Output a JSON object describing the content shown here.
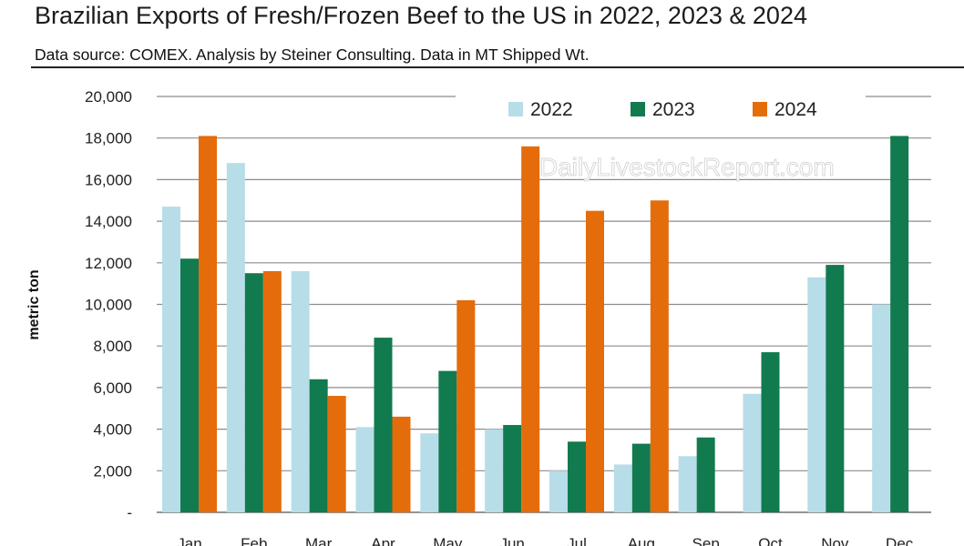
{
  "header": {
    "title": "Brazilian Exports of Fresh/Frozen Beef to the US in 2022, 2023 & 2024",
    "subtitle": "Data source: COMEX.  Analysis by Steiner Consulting.  Data in MT Shipped Wt.",
    "watermark": "DailyLivestockReport.com"
  },
  "chart_data": {
    "type": "bar",
    "title": "Brazilian Exports of Fresh/Frozen Beef to the US in 2022, 2023 & 2024",
    "xlabel": "",
    "ylabel": "metric ton",
    "ylim": [
      0,
      20000
    ],
    "yticks": [
      {
        "value": 0,
        "label": "-"
      },
      {
        "value": 2000,
        "label": "2,000"
      },
      {
        "value": 4000,
        "label": "4,000"
      },
      {
        "value": 6000,
        "label": "6,000"
      },
      {
        "value": 8000,
        "label": "8,000"
      },
      {
        "value": 10000,
        "label": "10,000"
      },
      {
        "value": 12000,
        "label": "12,000"
      },
      {
        "value": 14000,
        "label": "14,000"
      },
      {
        "value": 16000,
        "label": "16,000"
      },
      {
        "value": 18000,
        "label": "18,000"
      },
      {
        "value": 20000,
        "label": "20,000"
      }
    ],
    "grid": true,
    "legend_position": "top-right",
    "categories": [
      "Jan",
      "Feb",
      "Mar",
      "Apr",
      "May",
      "Jun",
      "Jul",
      "Aug",
      "Sep",
      "Oct",
      "Nov",
      "Dec"
    ],
    "series": [
      {
        "name": "2022",
        "color": "#b7dde8",
        "values": [
          14700,
          16800,
          11600,
          4100,
          3800,
          4000,
          2000,
          2300,
          2700,
          5700,
          11300,
          10000
        ]
      },
      {
        "name": "2023",
        "color": "#117a4f",
        "values": [
          12200,
          11500,
          6400,
          8400,
          6800,
          4200,
          3400,
          3300,
          3600,
          7700,
          11900,
          18100
        ]
      },
      {
        "name": "2024",
        "color": "#e46c0a",
        "values": [
          18100,
          11600,
          5600,
          4600,
          10200,
          17600,
          14500,
          15000,
          null,
          null,
          null,
          null
        ]
      }
    ]
  }
}
